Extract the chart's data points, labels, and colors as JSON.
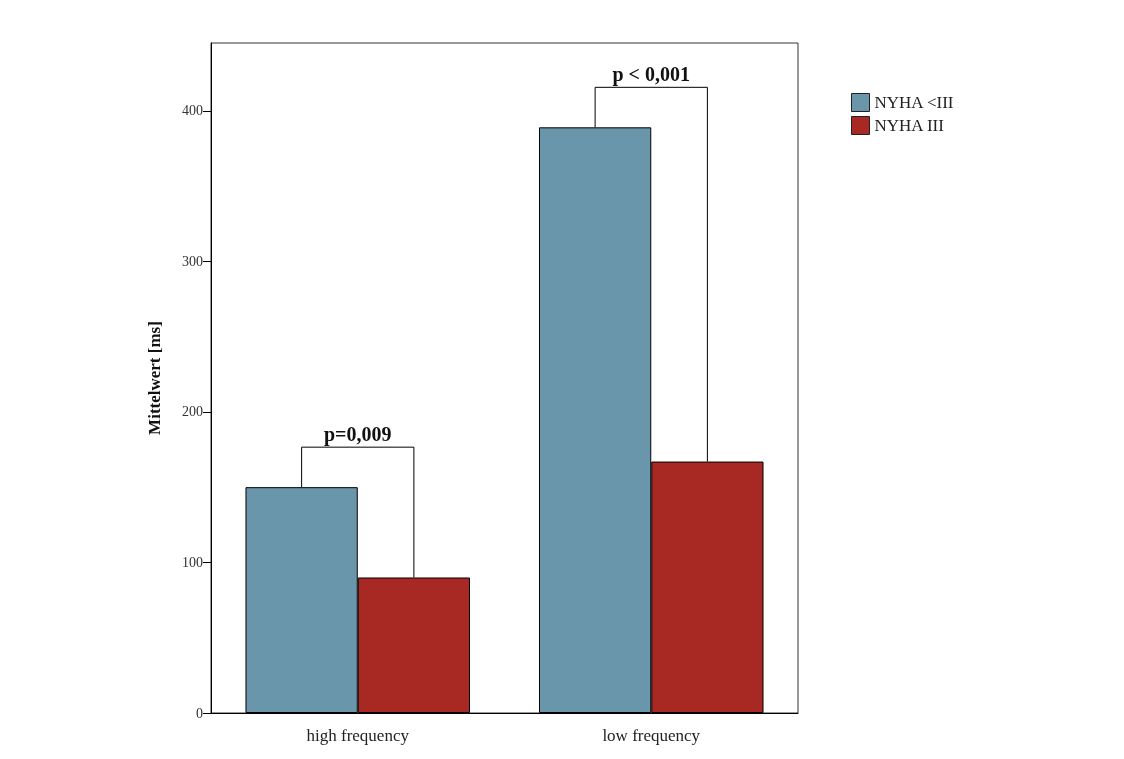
{
  "chart_data": {
    "type": "bar",
    "ylabel": "Mittelwert [ms]",
    "categories": [
      "high frequency",
      "low frequency"
    ],
    "series": [
      {
        "name": "NYHA <III",
        "color": "#6a96ab",
        "values": [
          150,
          389
        ]
      },
      {
        "name": "NYHA III",
        "color": "#a82924",
        "values": [
          90,
          167
        ]
      }
    ],
    "ylim": [
      0,
      445
    ],
    "yticks": [
      0,
      100,
      200,
      300,
      400
    ],
    "grid": false,
    "legend": "top right",
    "annotations": [
      "p=0,009",
      "p < 0,001"
    ]
  }
}
